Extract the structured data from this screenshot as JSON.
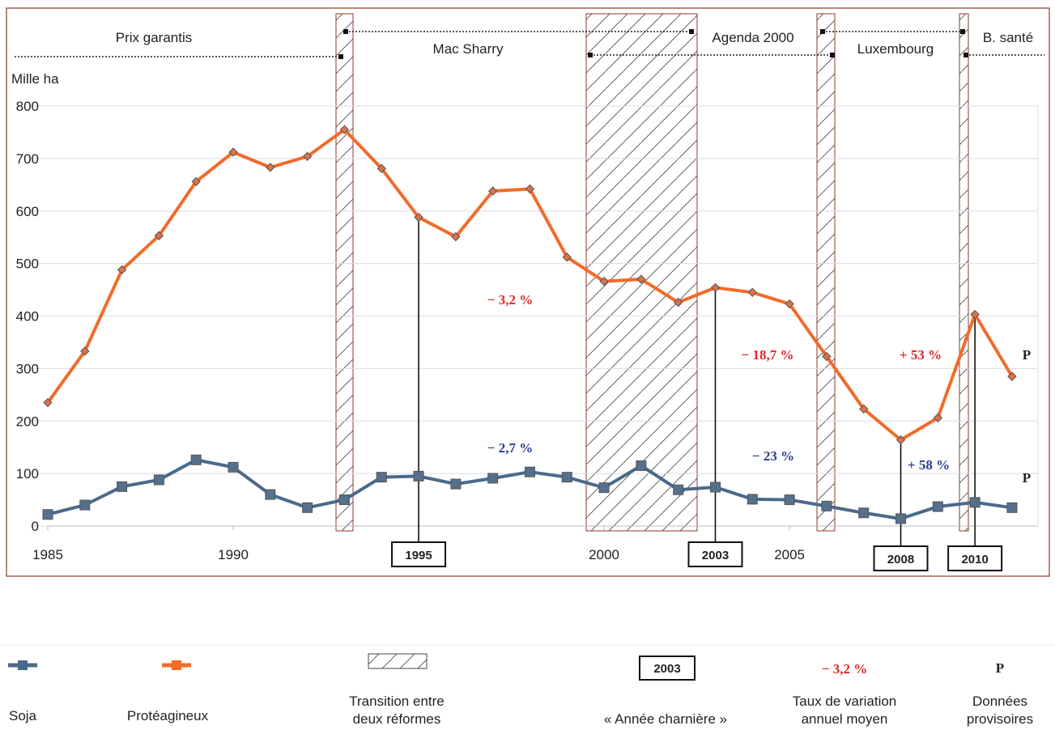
{
  "chart_data": {
    "type": "line",
    "y_label": "Mille ha",
    "x": [
      1985,
      1986,
      1987,
      1988,
      1989,
      1990,
      1991,
      1992,
      1993,
      1994,
      1995,
      1996,
      1997,
      1998,
      1999,
      2000,
      2001,
      2002,
      2003,
      2004,
      2005,
      2006,
      2007,
      2008,
      2009,
      2010,
      2011
    ],
    "series": [
      {
        "name": "Soja",
        "color": "#4a6a8a",
        "marker": "square",
        "values": [
          22,
          40,
          75,
          88,
          126,
          112,
          60,
          35,
          50,
          93,
          95,
          80,
          91,
          103,
          93,
          73,
          115,
          69,
          74,
          51,
          50,
          38,
          25,
          14,
          37,
          45,
          35
        ]
      },
      {
        "name": "Protéagineux",
        "color": "#f26b2a",
        "marker": "diamond",
        "values": [
          235,
          333,
          488,
          553,
          656,
          712,
          683,
          704,
          755,
          681,
          588,
          551,
          638,
          642,
          512,
          466,
          470,
          426,
          454,
          445,
          423,
          323,
          223,
          164,
          206,
          403,
          285
        ]
      }
    ],
    "xlim": [
      1985,
      2011.7
    ],
    "ylim": [
      0,
      800
    ],
    "xticks": [
      1985,
      1990,
      2000,
      2005
    ],
    "yticks": [
      0,
      100,
      200,
      300,
      400,
      500,
      600,
      700,
      800
    ],
    "grid": true,
    "key_years": [
      1995,
      2003,
      2008,
      2010
    ],
    "reforms": [
      "Prix garantis",
      "Mac Sharry",
      "Agenda 2000",
      "Luxembourg",
      "B. santé"
    ],
    "annotations": [
      {
        "text": "− 3,2 %",
        "color": "#e0262b"
      },
      {
        "text": "− 18,7 %",
        "color": "#e0262b"
      },
      {
        "text": "+ 53 %",
        "color": "#e0262b"
      },
      {
        "text": "− 2,7 %",
        "color": "#2e3d96"
      },
      {
        "text": "− 23 %",
        "color": "#2e3d96"
      },
      {
        "text": "+ 58 %",
        "color": "#2e3d96"
      }
    ],
    "provisional_mark": "P",
    "legend": {
      "transition": "Transition entre\ndeux réformes",
      "key_year": "« Année charnière »",
      "rate": "Taux de variation\nannuel moyen",
      "provisional": "Données\nprovisoires"
    }
  }
}
